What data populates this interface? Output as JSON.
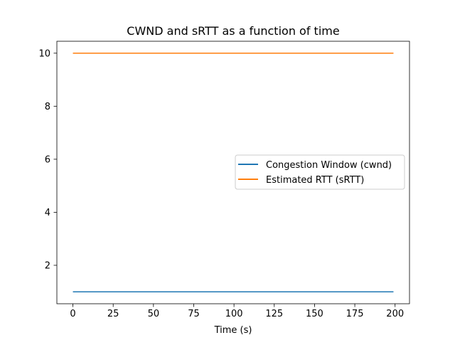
{
  "chart_data": {
    "type": "line",
    "title": "CWND and sRTT as a function of time",
    "xlabel": "Time (s)",
    "ylabel": "",
    "xlim": [
      -9.95,
      208.95
    ],
    "ylim": [
      0.55,
      10.45
    ],
    "xticks": [
      0,
      25,
      50,
      75,
      100,
      125,
      150,
      175,
      200
    ],
    "xtick_labels": [
      "0",
      "25",
      "50",
      "75",
      "100",
      "125",
      "150",
      "175",
      "200"
    ],
    "yticks": [
      2,
      4,
      6,
      8,
      10
    ],
    "ytick_labels": [
      "2",
      "4",
      "6",
      "8",
      "10"
    ],
    "grid": false,
    "legend_position": "center-right",
    "series": [
      {
        "name": "Congestion Window (cwnd)",
        "color": "#1f77b4",
        "x": [
          0,
          199
        ],
        "y": [
          1,
          1
        ]
      },
      {
        "name": "Estimated RTT (sRTT)",
        "color": "#ff7f0e",
        "x": [
          0,
          199
        ],
        "y": [
          10,
          10
        ]
      }
    ]
  }
}
